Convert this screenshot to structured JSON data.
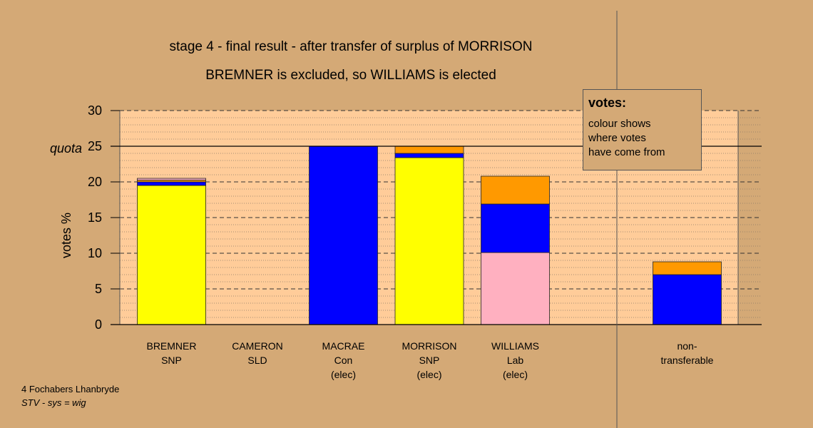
{
  "chart_data": {
    "type": "bar",
    "stacked": true,
    "title": "stage 4 - final result - after transfer of surplus of MORRISON",
    "subtitle": "BREMNER is excluded, so WILLIAMS is elected",
    "ylabel": "votes %",
    "ylim": [
      0,
      30
    ],
    "yticks": [
      "0",
      "5",
      "10",
      "15",
      "20",
      "25",
      "30"
    ],
    "quota": {
      "label": "quota",
      "value": 25
    },
    "grid": true,
    "categories": [
      {
        "name": "BREMNER",
        "party": "SNP",
        "status": ""
      },
      {
        "name": "CAMERON",
        "party": "SLD",
        "status": ""
      },
      {
        "name": "MACRAE",
        "party": "Con",
        "status": "(elec)"
      },
      {
        "name": "MORRISON",
        "party": "SNP",
        "status": "(elec)"
      },
      {
        "name": "WILLIAMS",
        "party": "Lab",
        "status": "(elec)"
      },
      {
        "name": "",
        "party": "",
        "status": ""
      },
      {
        "name": "non-",
        "party": "transferable",
        "status": ""
      }
    ],
    "bars": [
      {
        "segments": [
          {
            "color": "#ffff00",
            "value": 19.5
          },
          {
            "color": "#0000ff",
            "value": 0.5
          },
          {
            "color": "#ff9900",
            "value": 0.25
          },
          {
            "color": "#ffb0c0",
            "value": 0.25
          }
        ]
      },
      {
        "segments": []
      },
      {
        "segments": [
          {
            "color": "#0000ff",
            "value": 25.0
          }
        ]
      },
      {
        "segments": [
          {
            "color": "#ffff00",
            "value": 23.4
          },
          {
            "color": "#0000ff",
            "value": 0.6
          },
          {
            "color": "#ff9900",
            "value": 1.0
          }
        ]
      },
      {
        "segments": [
          {
            "color": "#ffb0c0",
            "value": 10.1
          },
          {
            "color": "#0000ff",
            "value": 6.8
          },
          {
            "color": "#ff9900",
            "value": 3.9
          }
        ]
      },
      {
        "segments": []
      },
      {
        "segments": [
          {
            "color": "#0000ff",
            "value": 7.0
          },
          {
            "color": "#ff9900",
            "value": 1.8
          }
        ]
      }
    ],
    "legend": {
      "title": "votes:",
      "lines": [
        "colour shows",
        "where votes",
        "have come from"
      ]
    }
  },
  "footer": {
    "line1": "4 Fochabers Lhanbryde",
    "line2": "STV - sys = wig"
  }
}
